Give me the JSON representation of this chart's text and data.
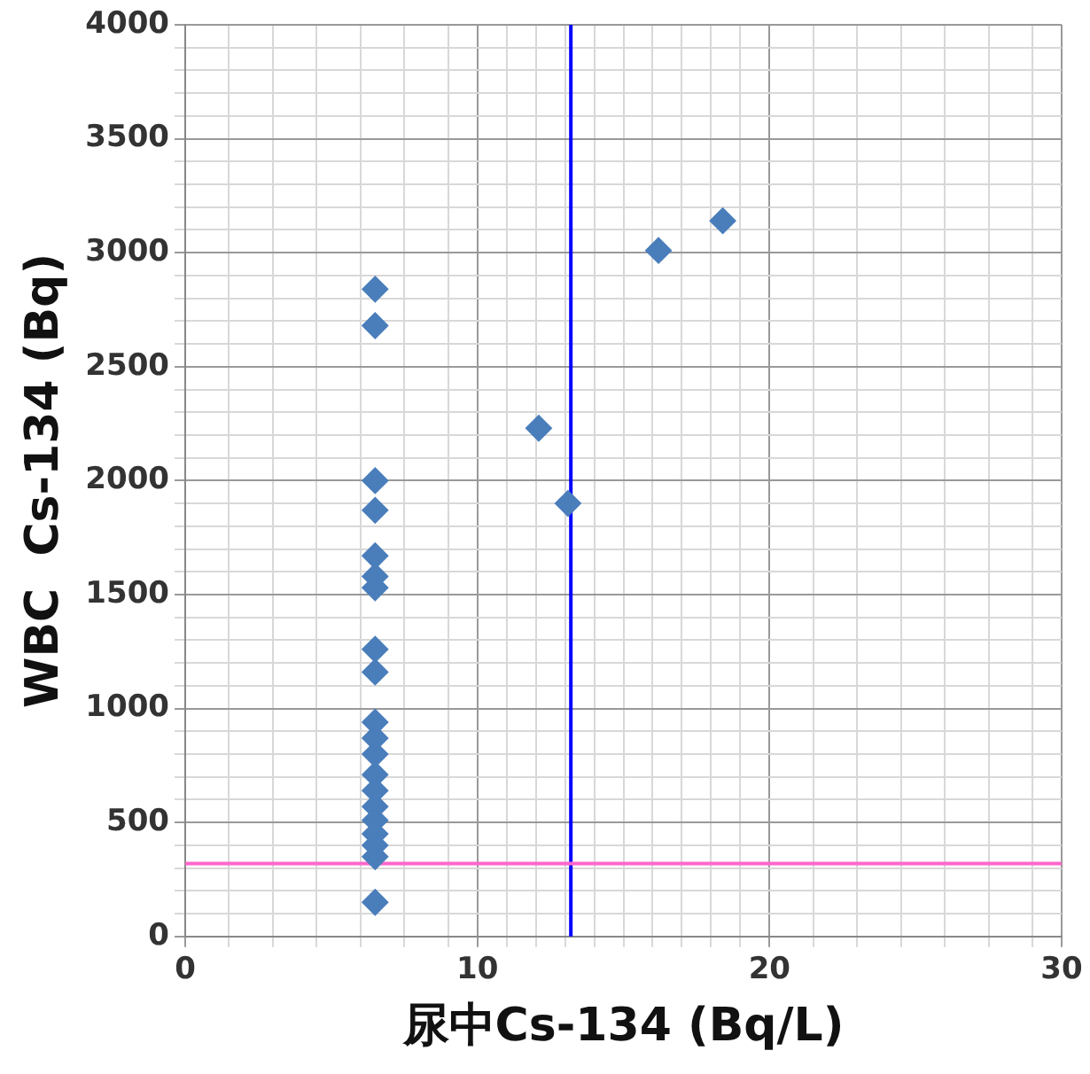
{
  "chart_data": {
    "type": "scatter",
    "xlabel": "尿中Cs-134 (Bq/L)",
    "ylabel": "WBC  Cs-134 (Bq)",
    "xlim": [
      0,
      30
    ],
    "ylim": [
      0,
      4000
    ],
    "xticks": [
      0,
      {
        "value": 1.5,
        "label": null
      },
      {
        "value": 3,
        "label": null
      },
      {
        "value": 4.5,
        "label": null
      },
      {
        "value": 6,
        "label": null
      },
      {
        "value": 7.5,
        "label": null
      },
      {
        "value": 9,
        "label": null
      },
      10,
      {
        "value": 11,
        "label": null
      },
      {
        "value": 12,
        "label": null
      },
      {
        "value": 13,
        "label": null
      },
      {
        "value": 14,
        "label": null
      },
      {
        "value": 15,
        "label": null
      },
      {
        "value": 16,
        "label": null
      },
      {
        "value": 17,
        "label": null
      },
      {
        "value": 18,
        "label": null
      },
      {
        "value": 19,
        "label": null
      },
      20,
      {
        "value": 21.5,
        "label": null
      },
      {
        "value": 23,
        "label": null
      },
      {
        "value": 24.5,
        "label": null
      },
      {
        "value": 26,
        "label": null
      },
      {
        "value": 27.5,
        "label": null
      },
      {
        "value": 29,
        "label": null
      },
      30
    ],
    "yticks": [
      0,
      {
        "value": 100,
        "label": null
      },
      {
        "value": 200,
        "label": null
      },
      {
        "value": 300,
        "label": null
      },
      {
        "value": 400,
        "label": null
      },
      500,
      {
        "value": 600,
        "label": null
      },
      {
        "value": 700,
        "label": null
      },
      {
        "value": 800,
        "label": null
      },
      {
        "value": 900,
        "label": null
      },
      1000,
      {
        "value": 1100,
        "label": null
      },
      {
        "value": 1200,
        "label": null
      },
      {
        "value": 1300,
        "label": null
      },
      {
        "value": 1400,
        "label": null
      },
      1500,
      {
        "value": 1600,
        "label": null
      },
      {
        "value": 1700,
        "label": null
      },
      {
        "value": 1800,
        "label": null
      },
      {
        "value": 1900,
        "label": null
      },
      2000,
      {
        "value": 2100,
        "label": null
      },
      {
        "value": 2200,
        "label": null
      },
      {
        "value": 2300,
        "label": null
      },
      {
        "value": 2400,
        "label": null
      },
      2500,
      {
        "value": 2600,
        "label": null
      },
      {
        "value": 2700,
        "label": null
      },
      {
        "value": 2800,
        "label": null
      },
      {
        "value": 2900,
        "label": null
      },
      3000,
      {
        "value": 3100,
        "label": null
      },
      {
        "value": 3200,
        "label": null
      },
      {
        "value": 3300,
        "label": null
      },
      {
        "value": 3400,
        "label": null
      },
      3500,
      {
        "value": 3600,
        "label": null
      },
      {
        "value": 3700,
        "label": null
      },
      {
        "value": 3800,
        "label": null
      },
      {
        "value": 3900,
        "label": null
      },
      4000
    ],
    "grid": true,
    "legend": false,
    "marker": "diamond",
    "series": [
      {
        "color": "#4a7ebb",
        "x": [
          6.5,
          6.5,
          6.5,
          6.5,
          6.5,
          6.5,
          6.5,
          6.5,
          6.5,
          6.5,
          6.5,
          6.5,
          6.5,
          6.5,
          6.5,
          6.5,
          6.5,
          6.5,
          6.5,
          6.5,
          12.1,
          13.1,
          16.2,
          18.4
        ],
        "values": [
          2840,
          2680,
          2000,
          1870,
          1670,
          1580,
          1530,
          1260,
          1160,
          940,
          870,
          800,
          710,
          640,
          570,
          510,
          450,
          400,
          350,
          150,
          2230,
          1900,
          3010,
          3140
        ]
      }
    ],
    "ref_lines": [
      {
        "axis": "x",
        "value": 13.2,
        "color": "#0000ff"
      },
      {
        "axis": "y",
        "value": 320,
        "color": "#ff66cc"
      }
    ]
  }
}
